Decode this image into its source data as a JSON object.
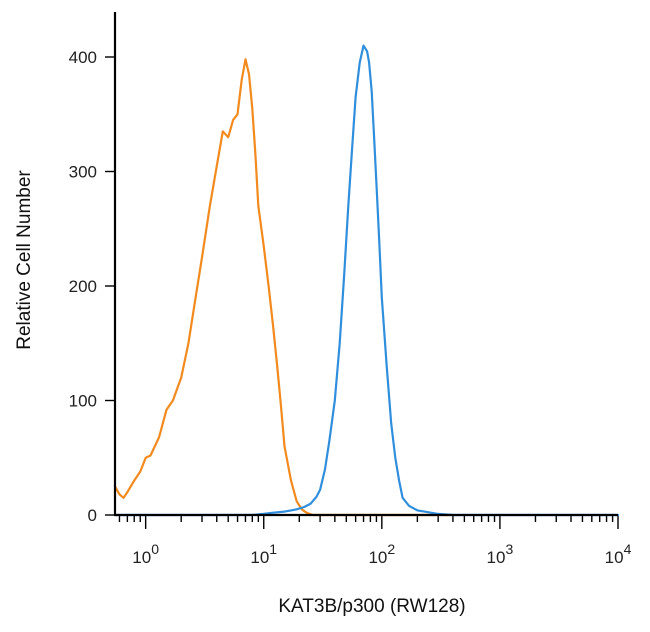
{
  "chart_data": {
    "type": "line",
    "title": "",
    "xlabel": "KAT3B/p300 (RW128)",
    "ylabel": "Relative Cell Number",
    "xscale": "log",
    "xlim": [
      0.55,
      10000
    ],
    "ylim": [
      0,
      440
    ],
    "grid": false,
    "legend": "none",
    "y_ticks": [
      0,
      100,
      200,
      300,
      400
    ],
    "x_ticks": [
      {
        "base": "10",
        "exp": "0",
        "value": 1
      },
      {
        "base": "10",
        "exp": "1",
        "value": 10
      },
      {
        "base": "10",
        "exp": "2",
        "value": 100
      },
      {
        "base": "10",
        "exp": "3",
        "value": 1000
      },
      {
        "base": "10",
        "exp": "4",
        "value": 10000
      }
    ],
    "series": [
      {
        "color": "#f28a1e",
        "x": [
          0.55,
          0.6,
          0.65,
          0.7,
          0.8,
          0.9,
          1.0,
          1.1,
          1.3,
          1.5,
          1.7,
          2.0,
          2.3,
          2.6,
          3.0,
          3.5,
          4.0,
          4.5,
          5.0,
          5.5,
          6.0,
          6.5,
          7.0,
          7.5,
          8.0,
          8.5,
          9.0,
          10.0,
          11.0,
          12.0,
          13.0,
          14.0,
          15.0,
          17.0,
          19.0,
          21.0,
          23.0,
          26.0,
          30.0,
          40.0,
          60.0,
          100.0,
          200.0,
          400.0
        ],
        "y": [
          25,
          18,
          15,
          20,
          30,
          38,
          50,
          52,
          68,
          92,
          100,
          120,
          150,
          185,
          225,
          270,
          305,
          335,
          330,
          345,
          350,
          380,
          398,
          385,
          355,
          315,
          270,
          235,
          200,
          165,
          130,
          95,
          60,
          30,
          12,
          5,
          2,
          0,
          0,
          0,
          0,
          0,
          0,
          0
        ]
      },
      {
        "color": "#2f8fdd",
        "x": [
          0.55,
          2.0,
          5.0,
          8.0,
          10.0,
          12.0,
          15.0,
          17.0,
          19.0,
          22.0,
          25.0,
          28.0,
          30.0,
          33.0,
          36.0,
          40.0,
          44.0,
          48.0,
          52.0,
          56.0,
          60.0,
          65.0,
          70.0,
          75.0,
          78.0,
          82.0,
          86.0,
          90.0,
          95.0,
          100.0,
          110.0,
          120.0,
          130.0,
          140.0,
          150.0,
          170.0,
          200.0,
          230.0,
          260.0,
          300.0,
          400.0,
          1000.0,
          10000.0
        ],
        "y": [
          0,
          0,
          0,
          0,
          1,
          2,
          3,
          4,
          5,
          7,
          10,
          16,
          22,
          40,
          65,
          100,
          150,
          210,
          270,
          320,
          365,
          395,
          410,
          405,
          395,
          370,
          330,
          290,
          240,
          190,
          130,
          80,
          50,
          30,
          15,
          8,
          4,
          3,
          2,
          1,
          0,
          0,
          0
        ]
      }
    ]
  }
}
